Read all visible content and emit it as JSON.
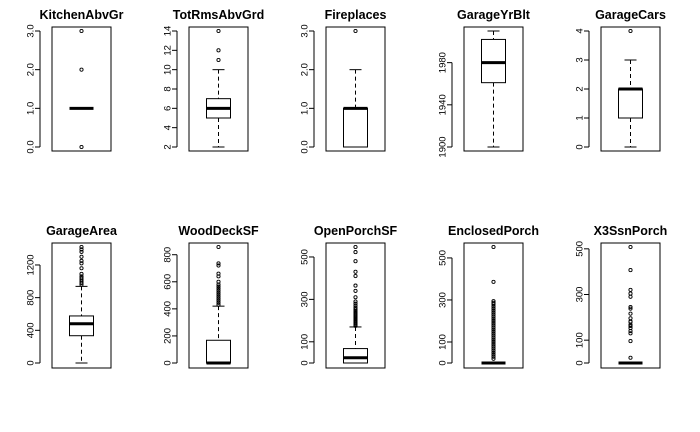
{
  "chart_data": [
    {
      "type": "boxplot",
      "title": "KitchenAbvGr",
      "ylim": [
        0,
        3
      ],
      "yticks": [
        0,
        1,
        2,
        3
      ],
      "ytick_labels": [
        "0.0",
        "1.0",
        "2.0",
        "3.0"
      ],
      "box": {
        "lower_whisker": 1,
        "q1": 1,
        "median": 1,
        "q3": 1,
        "upper_whisker": 1
      },
      "outliers": [
        0,
        2,
        3
      ]
    },
    {
      "type": "boxplot",
      "title": "TotRmsAbvGrd",
      "ylim": [
        2,
        14
      ],
      "yticks": [
        2,
        4,
        6,
        8,
        10,
        12,
        14
      ],
      "ytick_labels": [
        "2",
        "4",
        "6",
        "8",
        "10",
        "12",
        "14"
      ],
      "box": {
        "lower_whisker": 2,
        "q1": 5,
        "median": 6,
        "q3": 7,
        "upper_whisker": 10
      },
      "outliers": [
        11,
        12,
        14
      ]
    },
    {
      "type": "boxplot",
      "title": "Fireplaces",
      "ylim": [
        0,
        3
      ],
      "yticks": [
        0,
        1,
        2,
        3
      ],
      "ytick_labels": [
        "0.0",
        "1.0",
        "2.0",
        "3.0"
      ],
      "box": {
        "lower_whisker": 0,
        "q1": 0,
        "median": 1,
        "q3": 1,
        "upper_whisker": 2
      },
      "outliers": [
        3
      ]
    },
    {
      "type": "boxplot",
      "title": "GarageYrBlt",
      "ylim": [
        1900,
        2010
      ],
      "yticks": [
        1900,
        1940,
        1980
      ],
      "ytick_labels": [
        "1900",
        "1940",
        "1980"
      ],
      "box": {
        "lower_whisker": 1900,
        "q1": 1961,
        "median": 1980,
        "q3": 2002,
        "upper_whisker": 2010
      },
      "outliers": []
    },
    {
      "type": "boxplot",
      "title": "GarageCars",
      "ylim": [
        0,
        4
      ],
      "yticks": [
        0,
        1,
        2,
        3,
        4
      ],
      "ytick_labels": [
        "0",
        "1",
        "2",
        "3",
        "4"
      ],
      "box": {
        "lower_whisker": 0,
        "q1": 1,
        "median": 2,
        "q3": 2,
        "upper_whisker": 3
      },
      "outliers": [
        4
      ]
    },
    {
      "type": "boxplot",
      "title": "GarageArea",
      "ylim": [
        0,
        1420
      ],
      "yticks": [
        0,
        400,
        800,
        1200
      ],
      "ytick_labels": [
        "0",
        "400",
        "800",
        "1200"
      ],
      "box": {
        "lower_whisker": 0,
        "q1": 334,
        "median": 480,
        "q3": 576,
        "upper_whisker": 938
      },
      "outliers": [
        960,
        980,
        1000,
        1020,
        1040,
        1060,
        1090,
        1160,
        1220,
        1250,
        1300,
        1360,
        1390,
        1420
      ]
    },
    {
      "type": "boxplot",
      "title": "WoodDeckSF",
      "ylim": [
        0,
        857
      ],
      "yticks": [
        0,
        200,
        400,
        600,
        800
      ],
      "ytick_labels": [
        "0",
        "200",
        "400",
        "600",
        "800"
      ],
      "box": {
        "lower_whisker": 0,
        "q1": 0,
        "median": 0,
        "q3": 168,
        "upper_whisker": 420
      },
      "outliers": [
        430,
        445,
        460,
        475,
        490,
        505,
        520,
        535,
        550,
        565,
        580,
        600,
        640,
        660,
        720,
        736,
        857
      ]
    },
    {
      "type": "boxplot",
      "title": "OpenPorchSF",
      "ylim": [
        0,
        547
      ],
      "yticks": [
        0,
        100,
        300,
        500
      ],
      "ytick_labels": [
        "0",
        "100",
        "300",
        "500"
      ],
      "box": {
        "lower_whisker": 0,
        "q1": 0,
        "median": 25,
        "q3": 68,
        "upper_whisker": 170
      },
      "outliers": [
        175,
        180,
        185,
        190,
        195,
        200,
        205,
        210,
        215,
        220,
        225,
        230,
        235,
        240,
        245,
        252,
        260,
        270,
        280,
        290,
        310,
        340,
        365,
        410,
        430,
        480,
        523,
        547
      ]
    },
    {
      "type": "boxplot",
      "title": "EnclosedPorch",
      "ylim": [
        0,
        552
      ],
      "yticks": [
        0,
        100,
        300,
        500
      ],
      "ytick_labels": [
        "0",
        "100",
        "300",
        "500"
      ],
      "box": {
        "lower_whisker": 0,
        "q1": 0,
        "median": 0,
        "q3": 0,
        "upper_whisker": 0
      },
      "outliers": [
        20,
        30,
        40,
        50,
        60,
        70,
        80,
        90,
        100,
        110,
        120,
        130,
        140,
        150,
        160,
        170,
        180,
        190,
        200,
        210,
        220,
        230,
        240,
        250,
        260,
        270,
        280,
        286,
        294,
        386,
        552
      ]
    },
    {
      "type": "boxplot",
      "title": "X3SsnPorch",
      "ylim": [
        0,
        508
      ],
      "yticks": [
        0,
        100,
        300,
        500
      ],
      "ytick_labels": [
        "0",
        "100",
        "300",
        "500"
      ],
      "box": {
        "lower_whisker": 0,
        "q1": 0,
        "median": 0,
        "q3": 0,
        "upper_whisker": 0
      },
      "outliers": [
        23,
        96,
        130,
        140,
        153,
        162,
        168,
        180,
        182,
        196,
        216,
        238,
        245,
        290,
        304,
        320,
        407,
        508
      ]
    }
  ]
}
